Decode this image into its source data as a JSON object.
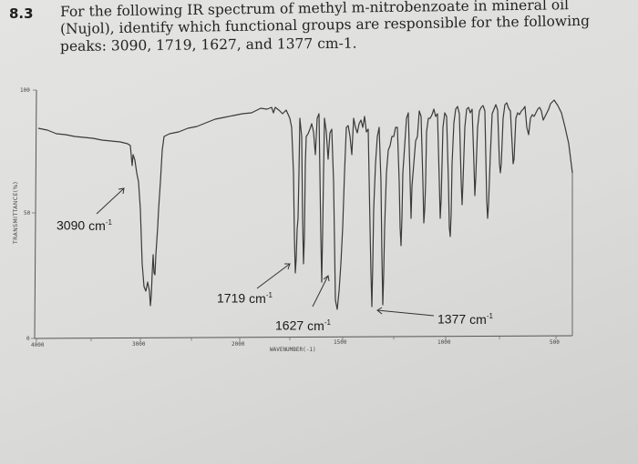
{
  "question": {
    "number": "8.3",
    "line1": "For the following IR spectrum of methyl m-nitrobenzoate in mineral oil",
    "line2": "(Nujol), identify which functional groups are responsible for the following",
    "line3": "peaks: 3090, 1719, 1627, and 1377 cm-1."
  },
  "spectrum": {
    "y_axis_label": "TRANSMITTANCE(%)",
    "y_ticks": [
      "100",
      "50",
      "0"
    ],
    "x_axis_label": "WAVENUMBER(-1)",
    "x_ticks": [
      "4000",
      "3000",
      "2000",
      "1500",
      "1000",
      "500"
    ],
    "line_color": "#3a3a3a",
    "annotations": [
      {
        "value": "3090",
        "unit": "cm",
        "exp": "-1"
      },
      {
        "value": "1719",
        "unit": "cm",
        "exp": "-1"
      },
      {
        "value": "1627",
        "unit": "cm",
        "exp": "-1"
      },
      {
        "value": "1377",
        "unit": "cm",
        "exp": "-1"
      }
    ]
  }
}
